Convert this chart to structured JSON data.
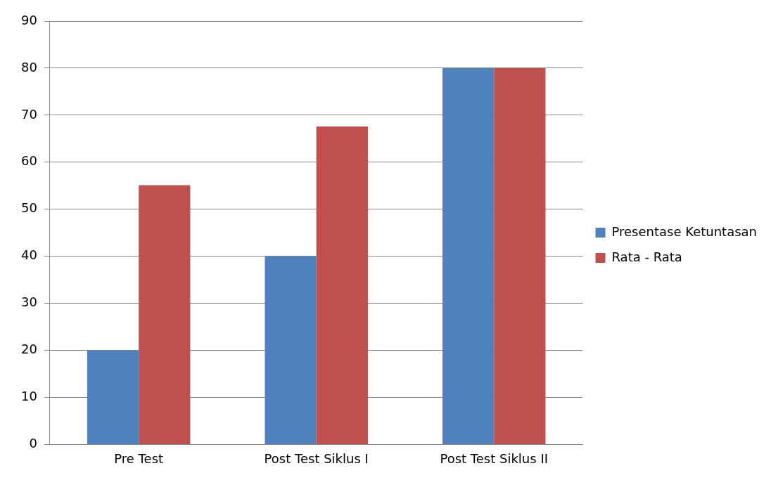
{
  "chart_data": {
    "type": "bar",
    "categories": [
      "Pre Test",
      "Post Test Siklus I",
      "Post Test Siklus II"
    ],
    "series": [
      {
        "name": "Presentase Ketuntasan",
        "color": "#4f81bd",
        "values": [
          20,
          40,
          80
        ]
      },
      {
        "name": "Rata - Rata",
        "color": "#c0504d",
        "values": [
          55.1,
          67.6,
          80
        ]
      }
    ],
    "ylim": [
      0,
      90
    ],
    "yticks": [
      0,
      10,
      20,
      30,
      40,
      50,
      60,
      70,
      80,
      90
    ],
    "grid": "y",
    "legend": "right"
  }
}
